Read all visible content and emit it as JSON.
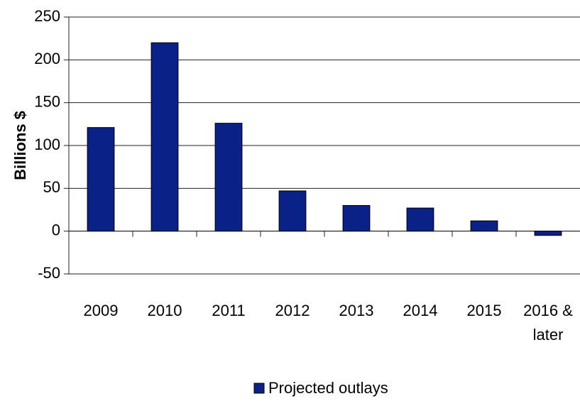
{
  "chart_data": {
    "type": "bar",
    "y_label": "Billions $",
    "categories": [
      "2009",
      "2010",
      "2011",
      "2012",
      "2013",
      "2014",
      "2015",
      "2016 & later"
    ],
    "series": [
      {
        "name": "Projected outlays",
        "color": "#0a2288",
        "values": [
          121,
          220,
          126,
          47,
          30,
          27,
          12,
          -5
        ]
      }
    ],
    "ylim": [
      -50,
      250
    ],
    "yticks": [
      -50,
      0,
      50,
      100,
      150,
      200,
      250
    ],
    "grid": true,
    "legend": "bottom"
  }
}
